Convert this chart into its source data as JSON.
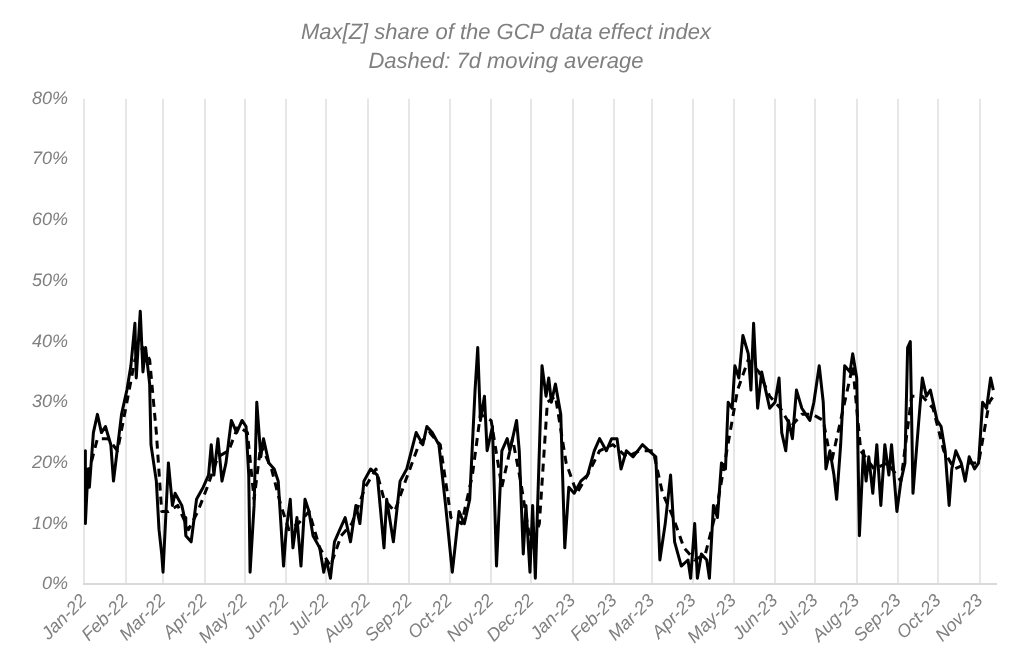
{
  "chart_data": {
    "type": "line",
    "title": "Max[Z] share of the GCP data effect index",
    "subtitle": "Dashed: 7d moving average",
    "xlim": [
      "2022-01-01",
      "2023-11-13"
    ],
    "xticks": [
      {
        "value": "2022-01-01",
        "label": "Jan-22"
      },
      {
        "value": "2022-02-01",
        "label": "Feb-22"
      },
      {
        "value": "2022-03-01",
        "label": "Mar-22"
      },
      {
        "value": "2022-04-01",
        "label": "Apr-22"
      },
      {
        "value": "2022-05-01",
        "label": "May-22"
      },
      {
        "value": "2022-06-01",
        "label": "Jun-22"
      },
      {
        "value": "2022-07-01",
        "label": "Jul-22"
      },
      {
        "value": "2022-08-01",
        "label": "Aug-22"
      },
      {
        "value": "2022-09-01",
        "label": "Sep-22"
      },
      {
        "value": "2022-10-01",
        "label": "Oct-22"
      },
      {
        "value": "2022-11-01",
        "label": "Nov-22"
      },
      {
        "value": "2022-12-01",
        "label": "Dec-22"
      },
      {
        "value": "2023-01-01",
        "label": "Jan-23"
      },
      {
        "value": "2023-02-01",
        "label": "Feb-23"
      },
      {
        "value": "2023-03-01",
        "label": "Mar-23"
      },
      {
        "value": "2023-04-01",
        "label": "Apr-23"
      },
      {
        "value": "2023-05-01",
        "label": "May-23"
      },
      {
        "value": "2023-06-01",
        "label": "Jun-23"
      },
      {
        "value": "2023-07-01",
        "label": "Jul-23"
      },
      {
        "value": "2023-08-01",
        "label": "Aug-23"
      },
      {
        "value": "2023-09-01",
        "label": "Sep-23"
      },
      {
        "value": "2023-10-01",
        "label": "Oct-23"
      },
      {
        "value": "2023-11-01",
        "label": "Nov-23"
      }
    ],
    "ylim": [
      0,
      80
    ],
    "yticks": [
      {
        "value": 0,
        "label": "0%"
      },
      {
        "value": 10,
        "label": "10%"
      },
      {
        "value": 20,
        "label": "20%"
      },
      {
        "value": 30,
        "label": "30%"
      },
      {
        "value": 40,
        "label": "40%"
      },
      {
        "value": 50,
        "label": "50%"
      },
      {
        "value": 60,
        "label": "60%"
      },
      {
        "value": 70,
        "label": "70%"
      },
      {
        "value": 80,
        "label": "80%"
      }
    ],
    "grid": "x",
    "legend": false,
    "marker": "none",
    "series": [
      {
        "color": "#000000",
        "line_style": "solid",
        "x": [
          "2022-01-01",
          "2022-01-02",
          "2022-01-04",
          "2022-01-05",
          "2022-01-08",
          "2022-01-11",
          "2022-01-14",
          "2022-01-17",
          "2022-01-21",
          "2022-01-23",
          "2022-01-29",
          "2022-02-02",
          "2022-02-05",
          "2022-02-08",
          "2022-02-09",
          "2022-02-12",
          "2022-02-14",
          "2022-02-16",
          "2022-02-19",
          "2022-02-20",
          "2022-02-24",
          "2022-02-26",
          "2022-02-28",
          "2022-03-01",
          "2022-03-03",
          "2022-03-05",
          "2022-03-08",
          "2022-03-10",
          "2022-03-15",
          "2022-03-17",
          "2022-03-18",
          "2022-03-22",
          "2022-03-26",
          "2022-03-31",
          "2022-04-04",
          "2022-04-06",
          "2022-04-08",
          "2022-04-11",
          "2022-04-14",
          "2022-04-17",
          "2022-04-21",
          "2022-04-25",
          "2022-04-29",
          "2022-05-02",
          "2022-05-04",
          "2022-05-05",
          "2022-05-08",
          "2022-05-10",
          "2022-05-13",
          "2022-05-15",
          "2022-05-19",
          "2022-05-23",
          "2022-05-26",
          "2022-05-30",
          "2022-06-01",
          "2022-06-04",
          "2022-06-06",
          "2022-06-09",
          "2022-06-12",
          "2022-06-15",
          "2022-06-18",
          "2022-06-21",
          "2022-06-26",
          "2022-06-29",
          "2022-07-01",
          "2022-07-04",
          "2022-07-07",
          "2022-07-11",
          "2022-07-15",
          "2022-07-19",
          "2022-07-23",
          "2022-07-26",
          "2022-07-29",
          "2022-08-03",
          "2022-08-08",
          "2022-08-13",
          "2022-08-15",
          "2022-08-20",
          "2022-08-25",
          "2022-08-30",
          "2022-09-06",
          "2022-09-11",
          "2022-09-14",
          "2022-09-18",
          "2022-09-23",
          "2022-09-28",
          "2022-10-03",
          "2022-10-08",
          "2022-10-12",
          "2022-10-16",
          "2022-10-20",
          "2022-10-22",
          "2022-10-24",
          "2022-10-27",
          "2022-10-29",
          "2022-11-02",
          "2022-11-05",
          "2022-11-09",
          "2022-11-13",
          "2022-11-15",
          "2022-11-20",
          "2022-11-22",
          "2022-11-25",
          "2022-11-27",
          "2022-11-30",
          "2022-12-02",
          "2022-12-04",
          "2022-12-09",
          "2022-12-12",
          "2022-12-14",
          "2022-12-16",
          "2022-12-19",
          "2022-12-23",
          "2022-12-26",
          "2022-12-29",
          "2023-01-02",
          "2023-01-07",
          "2023-01-12",
          "2023-01-17",
          "2023-01-21",
          "2023-01-26",
          "2023-01-30",
          "2023-02-03",
          "2023-02-06",
          "2023-02-10",
          "2023-02-15",
          "2023-02-22",
          "2023-02-27",
          "2023-03-04",
          "2023-03-07",
          "2023-03-11",
          "2023-03-15",
          "2023-03-18",
          "2023-03-23",
          "2023-03-28",
          "2023-03-30",
          "2023-04-02",
          "2023-04-04",
          "2023-04-07",
          "2023-04-11",
          "2023-04-13",
          "2023-04-16",
          "2023-04-19",
          "2023-04-22",
          "2023-04-25",
          "2023-04-27",
          "2023-04-30",
          "2023-05-02",
          "2023-05-05",
          "2023-05-08",
          "2023-05-12",
          "2023-05-14",
          "2023-05-16",
          "2023-05-19",
          "2023-05-22",
          "2023-05-25",
          "2023-05-28",
          "2023-06-01",
          "2023-06-04",
          "2023-06-06",
          "2023-06-09",
          "2023-06-11",
          "2023-06-14",
          "2023-06-17",
          "2023-06-21",
          "2023-06-24",
          "2023-06-27",
          "2023-06-30",
          "2023-07-04",
          "2023-07-07",
          "2023-07-09",
          "2023-07-12",
          "2023-07-15",
          "2023-07-17",
          "2023-07-20",
          "2023-07-23",
          "2023-07-27",
          "2023-07-29",
          "2023-08-01",
          "2023-08-03",
          "2023-08-06",
          "2023-08-08",
          "2023-08-10",
          "2023-08-13",
          "2023-08-16",
          "2023-08-19",
          "2023-08-22",
          "2023-08-25",
          "2023-08-27",
          "2023-08-31",
          "2023-09-03",
          "2023-09-06",
          "2023-09-08",
          "2023-09-10",
          "2023-09-12",
          "2023-09-16",
          "2023-09-19",
          "2023-09-22",
          "2023-09-25",
          "2023-09-30",
          "2023-10-03",
          "2023-10-06",
          "2023-10-09",
          "2023-10-11",
          "2023-10-14",
          "2023-10-18",
          "2023-10-21",
          "2023-10-24",
          "2023-10-28",
          "2023-10-31",
          "2023-11-03",
          "2023-11-06",
          "2023-11-09",
          "2023-11-11"
        ],
        "values": [
          22,
          10,
          19,
          16,
          25,
          28,
          25,
          26,
          23,
          17,
          28,
          32,
          36,
          43,
          34,
          45,
          35,
          39,
          33,
          23,
          17,
          9,
          5,
          2,
          11,
          20,
          13,
          15,
          13,
          11,
          8,
          7,
          14,
          16,
          18,
          23,
          18,
          24,
          17,
          20,
          27,
          25,
          27,
          26,
          18,
          2,
          13,
          30,
          21,
          24,
          20,
          19,
          17,
          3,
          9,
          14,
          6,
          11,
          3,
          14,
          12,
          8,
          6,
          2,
          4,
          1,
          7,
          9,
          11,
          7,
          13,
          10,
          17,
          19,
          18,
          6,
          14,
          7,
          17,
          19,
          25,
          23,
          26,
          25,
          23,
          13,
          2,
          12,
          10,
          14,
          32,
          39,
          27,
          31,
          22,
          26,
          3,
          22,
          24,
          22,
          27,
          22,
          5,
          13,
          2,
          13,
          1,
          36,
          31,
          34,
          30,
          33,
          28,
          6,
          16,
          15,
          17,
          18,
          22,
          24,
          22,
          24,
          24,
          19,
          22,
          21,
          23,
          22,
          21,
          4,
          10,
          18,
          7,
          3,
          4,
          1,
          10,
          1,
          5,
          4,
          1,
          13,
          11,
          20,
          19,
          30,
          29,
          36,
          34,
          41,
          38,
          32,
          43,
          29,
          35,
          32,
          29,
          30,
          34,
          25,
          22,
          27,
          24,
          32,
          29,
          28,
          27,
          30,
          36,
          30,
          19,
          22,
          18,
          14,
          23,
          36,
          35,
          38,
          34,
          8,
          22,
          17,
          21,
          15,
          23,
          13,
          23,
          18,
          23,
          12,
          17,
          20,
          39,
          40,
          15,
          26,
          34,
          31,
          32,
          27,
          26,
          22,
          13,
          19,
          22,
          20,
          17,
          21,
          19,
          20,
          30,
          29,
          34,
          32
        ]
      },
      {
        "color": "#000000",
        "line_style": "dashed",
        "x": [
          "2022-01-04",
          "2022-01-11",
          "2022-01-19",
          "2022-01-26",
          "2022-02-02",
          "2022-02-08",
          "2022-02-14",
          "2022-02-19",
          "2022-02-24",
          "2022-02-28",
          "2022-03-05",
          "2022-03-12",
          "2022-03-20",
          "2022-03-27",
          "2022-04-03",
          "2022-04-11",
          "2022-04-19",
          "2022-04-26",
          "2022-05-03",
          "2022-05-08",
          "2022-05-13",
          "2022-05-21",
          "2022-05-28",
          "2022-06-03",
          "2022-06-10",
          "2022-06-18",
          "2022-06-26",
          "2022-07-04",
          "2022-07-12",
          "2022-07-20",
          "2022-07-30",
          "2022-08-07",
          "2022-08-13",
          "2022-08-21",
          "2022-08-29",
          "2022-09-08",
          "2022-09-16",
          "2022-09-24",
          "2022-10-02",
          "2022-10-10",
          "2022-10-18",
          "2022-10-24",
          "2022-11-01",
          "2022-11-09",
          "2022-11-17",
          "2022-11-23",
          "2022-12-01",
          "2022-12-07",
          "2022-12-13",
          "2022-12-19",
          "2022-12-27",
          "2023-01-04",
          "2023-01-12",
          "2023-01-21",
          "2023-01-31",
          "2023-02-10",
          "2023-02-20",
          "2023-03-02",
          "2023-03-09",
          "2023-03-17",
          "2023-03-25",
          "2023-04-02",
          "2023-04-10",
          "2023-04-18",
          "2023-04-26",
          "2023-05-04",
          "2023-05-12",
          "2023-05-20",
          "2023-05-28",
          "2023-06-05",
          "2023-06-13",
          "2023-06-21",
          "2023-06-29",
          "2023-07-07",
          "2023-07-13",
          "2023-07-21",
          "2023-07-29",
          "2023-08-04",
          "2023-08-14",
          "2023-08-24",
          "2023-09-03",
          "2023-09-11",
          "2023-09-19",
          "2023-09-27",
          "2023-10-05",
          "2023-10-13",
          "2023-10-23",
          "2023-10-31",
          "2023-11-08",
          "2023-11-11"
        ],
        "values": [
          18,
          24,
          24,
          22,
          30,
          37,
          39,
          37,
          25,
          12,
          12,
          13,
          9,
          12,
          16,
          21,
          22,
          26,
          25,
          14,
          23,
          19,
          13,
          9,
          10,
          12,
          6,
          3,
          8,
          10,
          16,
          19,
          14,
          12,
          17,
          23,
          25,
          23,
          11,
          10,
          18,
          28,
          27,
          16,
          24,
          17,
          6,
          10,
          30,
          31,
          20,
          15,
          18,
          22,
          23,
          21,
          22,
          22,
          15,
          11,
          6,
          4,
          5,
          12,
          22,
          32,
          37,
          35,
          31,
          29,
          26,
          28,
          28,
          27,
          20,
          28,
          36,
          22,
          19,
          20,
          17,
          31,
          31,
          29,
          22,
          19,
          20,
          20,
          30,
          31
        ]
      }
    ]
  }
}
